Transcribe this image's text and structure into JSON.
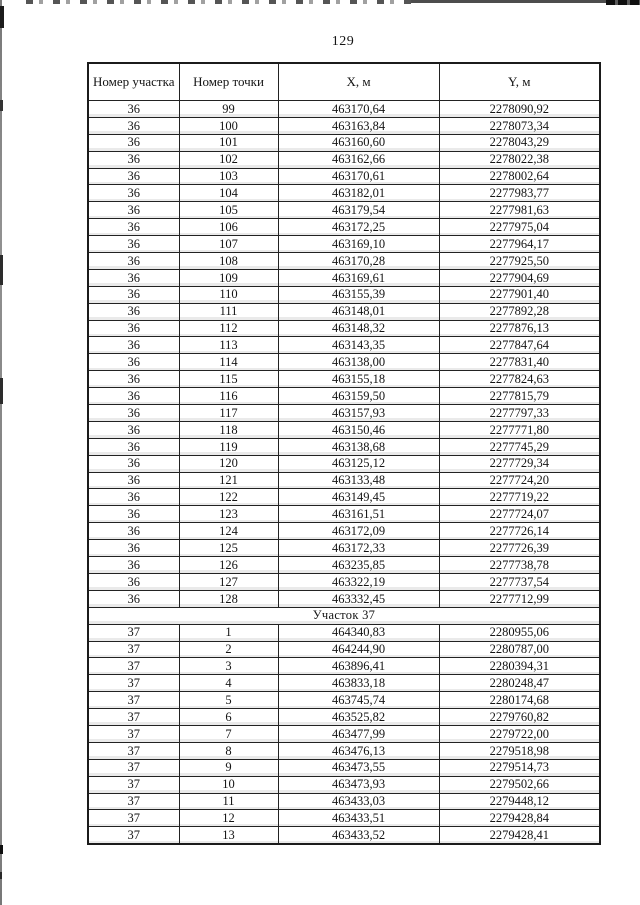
{
  "page": {
    "number": "129"
  },
  "table": {
    "headers": [
      "Номер участка",
      "Номер точки",
      "X, м",
      "Y, м"
    ],
    "rows": [
      {
        "type": "data",
        "cells": [
          "36",
          "99",
          "463170,64",
          "2278090,92"
        ]
      },
      {
        "type": "data",
        "cells": [
          "36",
          "100",
          "463163,84",
          "2278073,34"
        ]
      },
      {
        "type": "data",
        "cells": [
          "36",
          "101",
          "463160,60",
          "2278043,29"
        ]
      },
      {
        "type": "data",
        "cells": [
          "36",
          "102",
          "463162,66",
          "2278022,38"
        ]
      },
      {
        "type": "data",
        "cells": [
          "36",
          "103",
          "463170,61",
          "2278002,64"
        ]
      },
      {
        "type": "data",
        "cells": [
          "36",
          "104",
          "463182,01",
          "2277983,77"
        ]
      },
      {
        "type": "data",
        "cells": [
          "36",
          "105",
          "463179,54",
          "2277981,63"
        ]
      },
      {
        "type": "data",
        "cells": [
          "36",
          "106",
          "463172,25",
          "2277975,04"
        ]
      },
      {
        "type": "data",
        "cells": [
          "36",
          "107",
          "463169,10",
          "2277964,17"
        ]
      },
      {
        "type": "data",
        "cells": [
          "36",
          "108",
          "463170,28",
          "2277925,50"
        ]
      },
      {
        "type": "data",
        "cells": [
          "36",
          "109",
          "463169,61",
          "2277904,69"
        ]
      },
      {
        "type": "data",
        "cells": [
          "36",
          "110",
          "463155,39",
          "2277901,40"
        ]
      },
      {
        "type": "data",
        "cells": [
          "36",
          "111",
          "463148,01",
          "2277892,28"
        ]
      },
      {
        "type": "data",
        "cells": [
          "36",
          "112",
          "463148,32",
          "2277876,13"
        ]
      },
      {
        "type": "data",
        "cells": [
          "36",
          "113",
          "463143,35",
          "2277847,64"
        ]
      },
      {
        "type": "data",
        "cells": [
          "36",
          "114",
          "463138,00",
          "2277831,40"
        ]
      },
      {
        "type": "data",
        "cells": [
          "36",
          "115",
          "463155,18",
          "2277824,63"
        ]
      },
      {
        "type": "data",
        "cells": [
          "36",
          "116",
          "463159,50",
          "2277815,79"
        ]
      },
      {
        "type": "data",
        "cells": [
          "36",
          "117",
          "463157,93",
          "2277797,33"
        ]
      },
      {
        "type": "data",
        "cells": [
          "36",
          "118",
          "463150,46",
          "2277771,80"
        ]
      },
      {
        "type": "data",
        "cells": [
          "36",
          "119",
          "463138,68",
          "2277745,29"
        ]
      },
      {
        "type": "data",
        "cells": [
          "36",
          "120",
          "463125,12",
          "2277729,34"
        ]
      },
      {
        "type": "data",
        "cells": [
          "36",
          "121",
          "463133,48",
          "2277724,20"
        ]
      },
      {
        "type": "data",
        "cells": [
          "36",
          "122",
          "463149,45",
          "2277719,22"
        ]
      },
      {
        "type": "data",
        "cells": [
          "36",
          "123",
          "463161,51",
          "2277724,07"
        ]
      },
      {
        "type": "data",
        "cells": [
          "36",
          "124",
          "463172,09",
          "2277726,14"
        ]
      },
      {
        "type": "data",
        "cells": [
          "36",
          "125",
          "463172,33",
          "2277726,39"
        ]
      },
      {
        "type": "data",
        "cells": [
          "36",
          "126",
          "463235,85",
          "2277738,78"
        ]
      },
      {
        "type": "data",
        "cells": [
          "36",
          "127",
          "463322,19",
          "2277737,54"
        ]
      },
      {
        "type": "data",
        "cells": [
          "36",
          "128",
          "463332,45",
          "2277712,99"
        ]
      },
      {
        "type": "section",
        "label": "Участок 37"
      },
      {
        "type": "data",
        "cells": [
          "37",
          "1",
          "464340,83",
          "2280955,06"
        ]
      },
      {
        "type": "data",
        "cells": [
          "37",
          "2",
          "464244,90",
          "2280787,00"
        ]
      },
      {
        "type": "data",
        "cells": [
          "37",
          "3",
          "463896,41",
          "2280394,31"
        ]
      },
      {
        "type": "data",
        "cells": [
          "37",
          "4",
          "463833,18",
          "2280248,47"
        ]
      },
      {
        "type": "data",
        "cells": [
          "37",
          "5",
          "463745,74",
          "2280174,68"
        ]
      },
      {
        "type": "data",
        "cells": [
          "37",
          "6",
          "463525,82",
          "2279760,82"
        ]
      },
      {
        "type": "data",
        "cells": [
          "37",
          "7",
          "463477,99",
          "2279722,00"
        ]
      },
      {
        "type": "data",
        "cells": [
          "37",
          "8",
          "463476,13",
          "2279518,98"
        ]
      },
      {
        "type": "data",
        "cells": [
          "37",
          "9",
          "463473,55",
          "2279514,73"
        ]
      },
      {
        "type": "data",
        "cells": [
          "37",
          "10",
          "463473,93",
          "2279502,66"
        ]
      },
      {
        "type": "data",
        "cells": [
          "37",
          "11",
          "463433,03",
          "2279448,12"
        ]
      },
      {
        "type": "data",
        "cells": [
          "37",
          "12",
          "463433,51",
          "2279428,84"
        ]
      },
      {
        "type": "data",
        "cells": [
          "37",
          "13",
          "463433,52",
          "2279428,41"
        ]
      }
    ]
  }
}
